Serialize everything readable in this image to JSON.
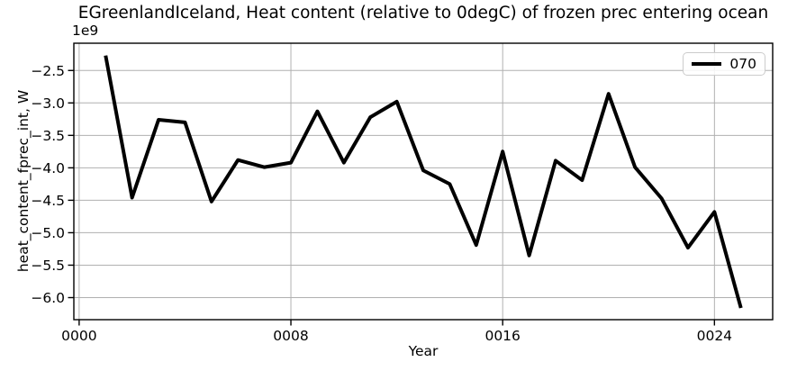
{
  "style": {
    "background": "#ffffff",
    "line_color": "#000000",
    "grid_color": "#b0b0b0",
    "spine_color": "#000000",
    "tick_color": "#000000",
    "legend_border_color": "#cccccc"
  },
  "chart_data": {
    "type": "line",
    "title": "EGreenlandIceland, Heat content (relative to 0degC) of frozen prec entering ocean",
    "xlabel": "Year",
    "ylabel": "heat_content_fprec_int, W",
    "y_offset_label": "1e9",
    "y_unit_multiplier": 1000000000,
    "grid": true,
    "legend": [
      "070"
    ],
    "legend_position": "upper right",
    "xlim": [
      -0.2,
      26.2
    ],
    "ylim_1e9": [
      -6.34,
      -2.08
    ],
    "xticks": {
      "values": [
        0,
        8,
        16,
        24
      ],
      "labels": [
        "0000",
        "0008",
        "0016",
        "0024"
      ]
    },
    "yticks": {
      "values_1e9": [
        -2.5,
        -3.0,
        -3.5,
        -4.0,
        -4.5,
        -5.0,
        -5.5,
        -6.0
      ],
      "labels": [
        "−2.5",
        "−3.0",
        "−3.5",
        "−4.0",
        "−4.5",
        "−5.0",
        "−5.5",
        "−6.0"
      ]
    },
    "series": [
      {
        "name": "070",
        "line_width": 4,
        "x": [
          1,
          2,
          3,
          4,
          5,
          6,
          7,
          8,
          9,
          10,
          11,
          12,
          13,
          14,
          15,
          16,
          17,
          18,
          19,
          20,
          21,
          22,
          23,
          24,
          25
        ],
        "values_1e9": [
          -2.27,
          -4.46,
          -3.26,
          -3.3,
          -4.52,
          -3.88,
          -3.99,
          -3.92,
          -3.13,
          -3.92,
          -3.22,
          -2.98,
          -4.04,
          -4.25,
          -5.19,
          -3.75,
          -5.35,
          -3.89,
          -4.19,
          -2.86,
          -3.99,
          -4.47,
          -5.23,
          -4.68,
          -6.16
        ]
      }
    ]
  }
}
